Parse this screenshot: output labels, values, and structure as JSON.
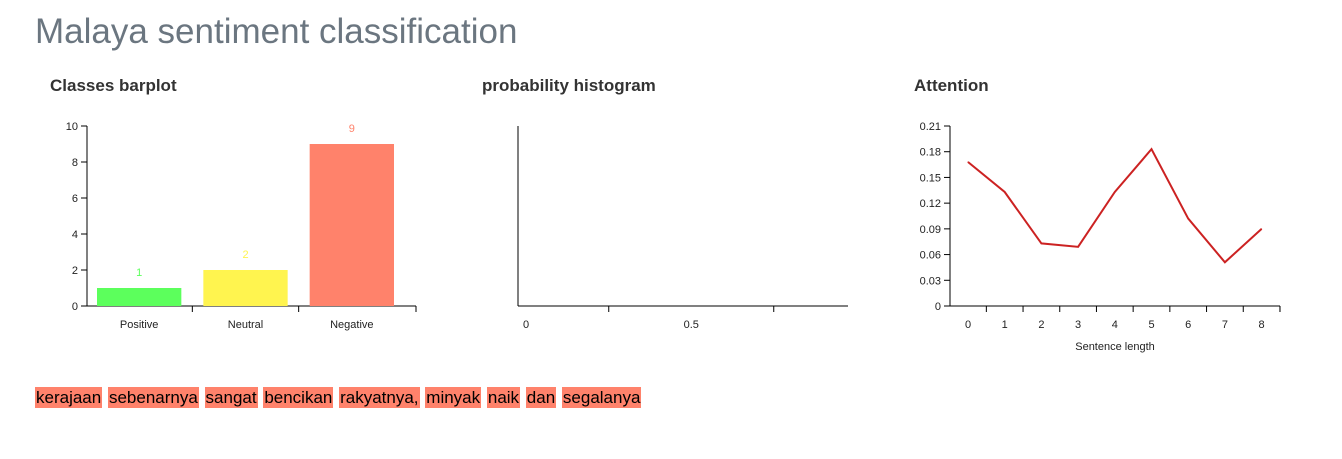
{
  "title": "Malaya sentiment classification",
  "panels": {
    "barplot_title": "Classes barplot",
    "histogram_title": "probability histogram",
    "attention_title": "Attention"
  },
  "chart_data": [
    {
      "type": "bar",
      "title": "Classes barplot",
      "categories": [
        "Positive",
        "Neutral",
        "Negative"
      ],
      "values": [
        1,
        2,
        9
      ],
      "colors": [
        "#5cff5c",
        "#fff44f",
        "#ff826b"
      ],
      "ylim": [
        0,
        10
      ],
      "yticks": [
        "0",
        "2",
        "4",
        "6",
        "8",
        "10"
      ],
      "grid": false
    },
    {
      "type": "bar",
      "title": "probability histogram",
      "values": [],
      "xticks": [
        "0",
        "0.5"
      ],
      "grid": false
    },
    {
      "type": "line",
      "title": "Attention",
      "xlabel": "Sentence length",
      "x": [
        0,
        1,
        2,
        3,
        4,
        5,
        6,
        7,
        8
      ],
      "values": [
        0.168,
        0.133,
        0.073,
        0.069,
        0.133,
        0.183,
        0.102,
        0.051,
        0.09
      ],
      "color": "#cc2222",
      "ylim": [
        0,
        0.21
      ],
      "yticks": [
        "0",
        "0.03",
        "0.06",
        "0.09",
        "0.12",
        "0.15",
        "0.18",
        "0.21"
      ],
      "grid": false
    }
  ],
  "sentence": {
    "words": [
      "kerajaan",
      "sebenarnya",
      "sangat",
      "bencikan",
      "rakyatnya,",
      "minyak",
      "naik",
      "dan",
      "segalanya"
    ],
    "highlight_color": "#ff826b"
  }
}
